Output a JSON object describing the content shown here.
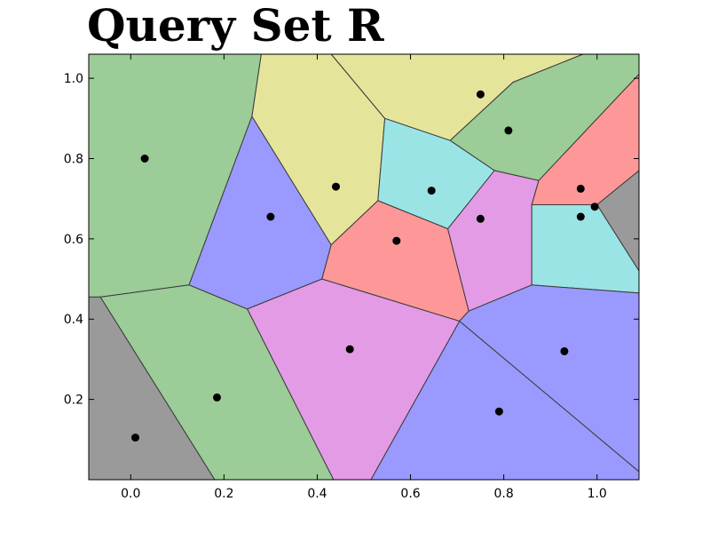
{
  "chart_data": {
    "type": "voronoi",
    "title": "Query Set R",
    "xlabel": "",
    "ylabel": "",
    "xlim": [
      -0.09,
      1.09
    ],
    "ylim": [
      0.0,
      1.06
    ],
    "xticks": [
      0.0,
      0.2,
      0.4,
      0.6,
      0.8,
      1.0
    ],
    "yticks": [
      0.2,
      0.4,
      0.6,
      0.8,
      1.0
    ],
    "xtick_labels": [
      "0.0",
      "0.2",
      "0.4",
      "0.6",
      "0.8",
      "1.0"
    ],
    "ytick_labels": [
      "0.2",
      "0.4",
      "0.6",
      "0.8",
      "1.0"
    ],
    "grid": false,
    "point_color": "#000000",
    "edge_color": "#3a3a3a",
    "region_colors": {
      "green": "#9ccc98",
      "yellow": "#e5e49b",
      "blue": "#9a9afe",
      "red": "#fe9898",
      "cyan": "#9ae4e6",
      "magenta": "#e49be6",
      "gray": "#9a9a9a"
    },
    "points": [
      {
        "x": 0.03,
        "y": 0.8
      },
      {
        "x": 0.3,
        "y": 0.655
      },
      {
        "x": 0.44,
        "y": 0.73
      },
      {
        "x": 0.57,
        "y": 0.595
      },
      {
        "x": 0.645,
        "y": 0.72
      },
      {
        "x": 0.75,
        "y": 0.96
      },
      {
        "x": 0.81,
        "y": 0.87
      },
      {
        "x": 0.75,
        "y": 0.65
      },
      {
        "x": 0.965,
        "y": 0.725
      },
      {
        "x": 0.965,
        "y": 0.655
      },
      {
        "x": 0.995,
        "y": 0.68
      },
      {
        "x": 0.01,
        "y": 0.105
      },
      {
        "x": 0.185,
        "y": 0.205
      },
      {
        "x": 0.47,
        "y": 0.325
      },
      {
        "x": 0.79,
        "y": 0.17
      },
      {
        "x": 0.93,
        "y": 0.32
      }
    ],
    "regions": [
      {
        "color": "green",
        "vertices": [
          [
            -0.09,
            1.06
          ],
          [
            0.28,
            1.06
          ],
          [
            0.26,
            0.905
          ],
          [
            0.125,
            0.485
          ],
          [
            -0.065,
            0.455
          ],
          [
            -0.09,
            0.455
          ]
        ]
      },
      {
        "color": "blue",
        "vertices": [
          [
            0.26,
            0.905
          ],
          [
            0.43,
            0.585
          ],
          [
            0.41,
            0.5
          ],
          [
            0.25,
            0.425
          ],
          [
            0.125,
            0.485
          ]
        ]
      },
      {
        "color": "yellow",
        "vertices": [
          [
            0.28,
            1.06
          ],
          [
            0.43,
            1.06
          ],
          [
            0.545,
            0.9
          ],
          [
            0.53,
            0.695
          ],
          [
            0.43,
            0.585
          ],
          [
            0.26,
            0.905
          ]
        ]
      },
      {
        "color": "yellow",
        "vertices": [
          [
            0.43,
            1.06
          ],
          [
            0.97,
            1.06
          ],
          [
            0.82,
            0.99
          ],
          [
            0.685,
            0.845
          ],
          [
            0.545,
            0.9
          ]
        ]
      },
      {
        "color": "green",
        "vertices": [
          [
            0.97,
            1.06
          ],
          [
            1.09,
            1.06
          ],
          [
            1.09,
            1.01
          ],
          [
            0.875,
            0.745
          ],
          [
            0.78,
            0.77
          ],
          [
            0.685,
            0.845
          ],
          [
            0.82,
            0.99
          ]
        ]
      },
      {
        "color": "cyan",
        "vertices": [
          [
            0.545,
            0.9
          ],
          [
            0.685,
            0.845
          ],
          [
            0.78,
            0.77
          ],
          [
            0.68,
            0.625
          ],
          [
            0.53,
            0.695
          ]
        ]
      },
      {
        "color": "red",
        "vertices": [
          [
            0.53,
            0.695
          ],
          [
            0.68,
            0.625
          ],
          [
            0.725,
            0.42
          ],
          [
            0.705,
            0.395
          ],
          [
            0.41,
            0.5
          ],
          [
            0.43,
            0.585
          ]
        ]
      },
      {
        "color": "magenta",
        "vertices": [
          [
            0.78,
            0.77
          ],
          [
            0.875,
            0.745
          ],
          [
            0.86,
            0.685
          ],
          [
            0.86,
            0.485
          ],
          [
            0.725,
            0.42
          ],
          [
            0.68,
            0.625
          ]
        ]
      },
      {
        "color": "red",
        "vertices": [
          [
            0.875,
            0.745
          ],
          [
            1.09,
            1.01
          ],
          [
            1.09,
            0.77
          ],
          [
            1.0,
            0.685
          ],
          [
            0.86,
            0.685
          ]
        ]
      },
      {
        "color": "gray",
        "vertices": [
          [
            1.0,
            0.685
          ],
          [
            1.09,
            0.77
          ],
          [
            1.09,
            0.52
          ]
        ]
      },
      {
        "color": "cyan",
        "vertices": [
          [
            0.86,
            0.685
          ],
          [
            1.0,
            0.685
          ],
          [
            1.09,
            0.52
          ],
          [
            1.09,
            0.465
          ],
          [
            0.86,
            0.485
          ]
        ]
      },
      {
        "color": "blue",
        "vertices": [
          [
            0.725,
            0.42
          ],
          [
            0.86,
            0.485
          ],
          [
            1.09,
            0.465
          ],
          [
            1.09,
            0.02
          ],
          [
            0.705,
            0.395
          ]
        ]
      },
      {
        "color": "blue",
        "vertices": [
          [
            0.705,
            0.395
          ],
          [
            1.09,
            0.02
          ],
          [
            1.09,
            0.0
          ],
          [
            0.515,
            0.0
          ]
        ]
      },
      {
        "color": "magenta",
        "vertices": [
          [
            0.41,
            0.5
          ],
          [
            0.705,
            0.395
          ],
          [
            0.515,
            0.0
          ],
          [
            0.435,
            0.0
          ],
          [
            0.25,
            0.425
          ]
        ]
      },
      {
        "color": "green",
        "vertices": [
          [
            -0.065,
            0.455
          ],
          [
            0.125,
            0.485
          ],
          [
            0.25,
            0.425
          ],
          [
            0.435,
            0.0
          ],
          [
            0.18,
            0.0
          ]
        ]
      },
      {
        "color": "gray",
        "vertices": [
          [
            -0.09,
            0.455
          ],
          [
            -0.065,
            0.455
          ],
          [
            0.18,
            0.0
          ],
          [
            -0.09,
            0.0
          ]
        ]
      }
    ]
  }
}
